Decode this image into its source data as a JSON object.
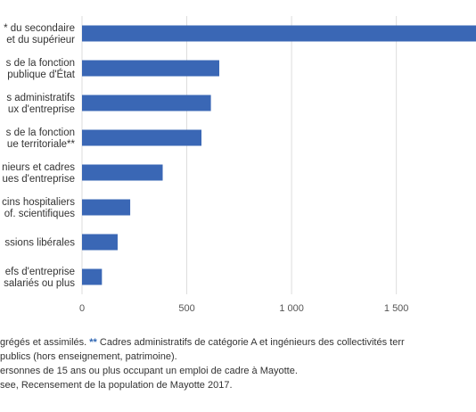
{
  "chart_data": {
    "type": "bar",
    "orientation": "horizontal",
    "categories": [
      [
        "* du secondaire",
        "et du supérieur"
      ],
      [
        "s de la fonction",
        "publique d'État"
      ],
      [
        "s administratifs",
        "ux d'entreprise"
      ],
      [
        "s de la fonction",
        "ue territoriale**"
      ],
      [
        "nieurs et cadres",
        "ues d'entreprise"
      ],
      [
        "cins hospitaliers",
        "of. scientifiques"
      ],
      [
        "ssions libérales"
      ],
      [
        "efs d'entreprise",
        "salariés ou plus"
      ]
    ],
    "values": [
      1880,
      655,
      615,
      570,
      385,
      230,
      170,
      95
    ],
    "xlim": [
      0,
      1880
    ],
    "xticks": [
      "0",
      "500",
      "1 000",
      "1 500"
    ],
    "xtick_values": [
      0,
      500,
      1000,
      1500
    ],
    "bar_color": "#3a67b5",
    "grid": true,
    "grid_color": "#dddddd"
  },
  "notes": {
    "line1_a": "grégés et assimilés. ",
    "line1_stars": "**",
    "line1_b": " Cadres administratifs de catégorie A et ingénieurs des collectivités terr",
    "line2": "publics (hors enseignement, patrimoine).",
    "line3": "ersonnes de 15 ans ou plus occupant un emploi de cadre à Mayotte.",
    "line4": "see, Recensement de la population de Mayotte 2017."
  }
}
